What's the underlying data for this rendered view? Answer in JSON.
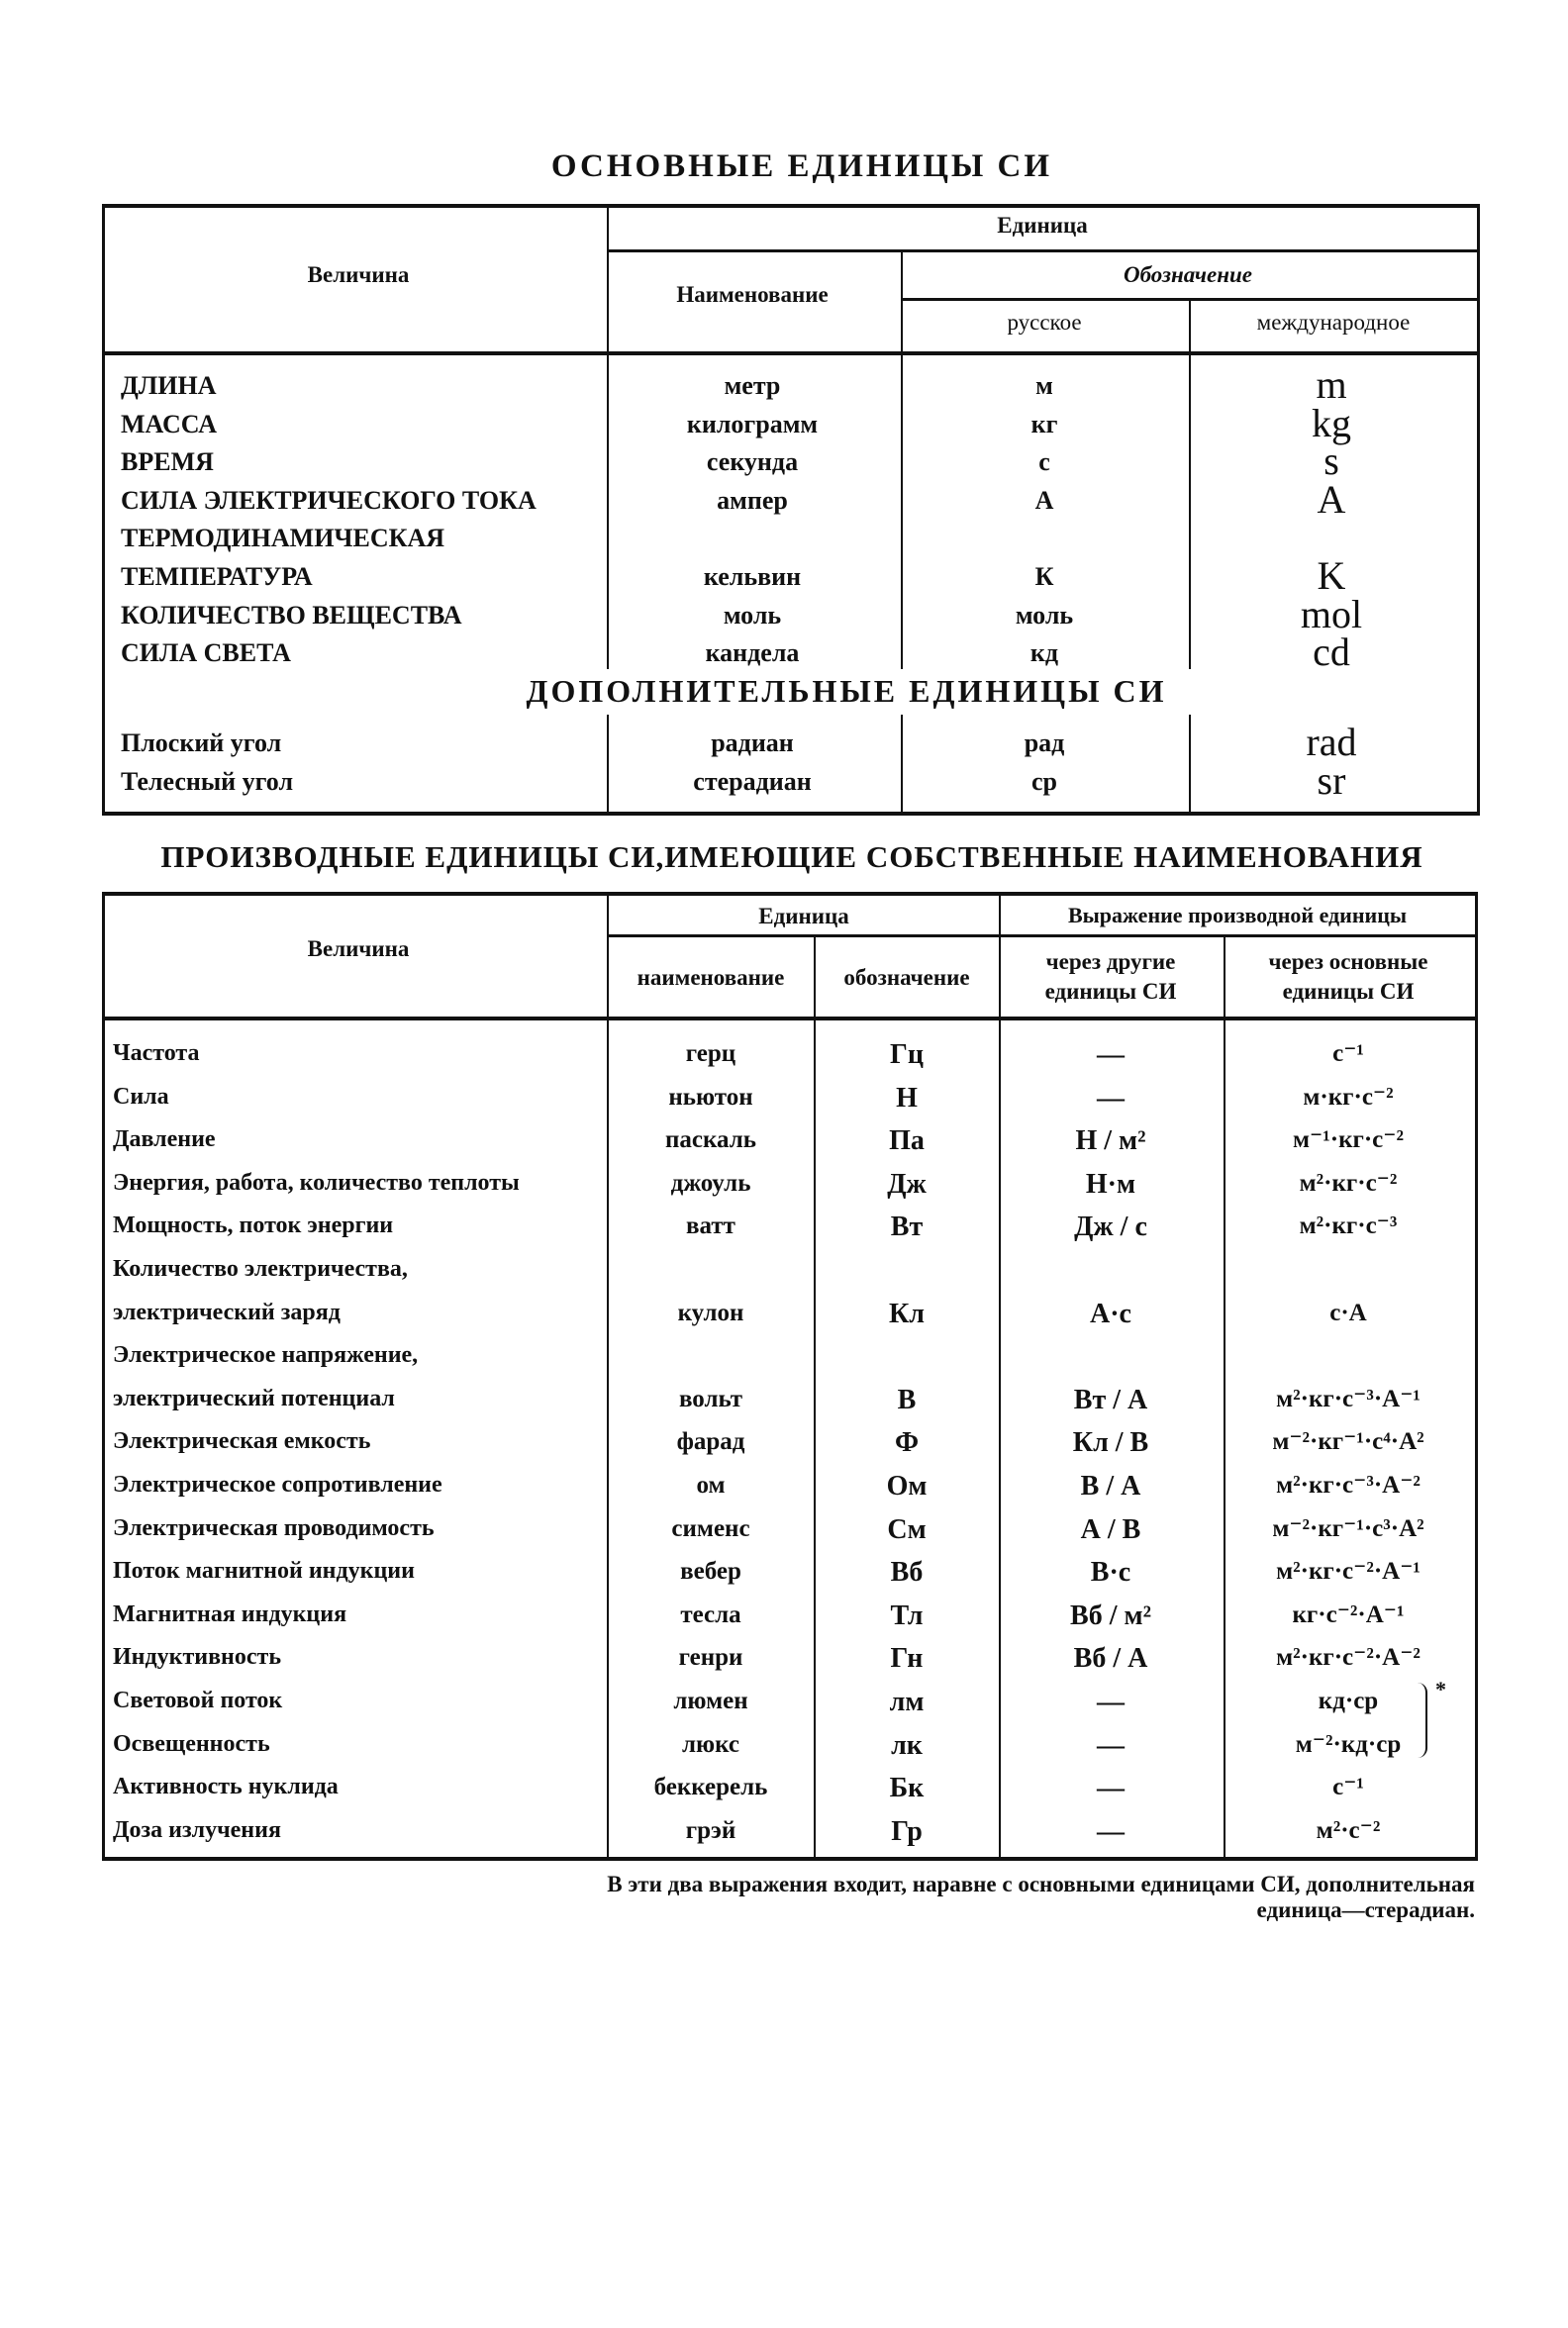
{
  "table1": {
    "title": "ОСНОВНЫЕ ЕДИНИЦЫ СИ",
    "headers": {
      "quantity": "Величина",
      "unit": "Единица",
      "name": "Наименование",
      "symbol": "Обозначение",
      "russian": "русское",
      "international": "международное"
    },
    "rows": [
      {
        "quantity": "ДЛИНА",
        "name": "метр",
        "ru": "м",
        "intl": "m"
      },
      {
        "quantity": "МАССА",
        "name": "килограмм",
        "ru": "кг",
        "intl": "kg"
      },
      {
        "quantity": "ВРЕМЯ",
        "name": "секунда",
        "ru": "с",
        "intl": "s"
      },
      {
        "quantity": "СИЛА ЭЛЕКТРИЧЕСКОГО ТОКА",
        "name": "ампер",
        "ru": "А",
        "intl": "A"
      },
      {
        "quantity": "ТЕРМОДИНАМИЧЕСКАЯ",
        "name": "",
        "ru": "",
        "intl": ""
      },
      {
        "quantity": "ТЕМПЕРАТУРА",
        "name": "кельвин",
        "ru": "К",
        "intl": "K"
      },
      {
        "quantity": "КОЛИЧЕСТВО ВЕЩЕСТВА",
        "name": "моль",
        "ru": "моль",
        "intl": "mol"
      },
      {
        "quantity": "СИЛА СВЕТА",
        "name": "кандела",
        "ru": "кд",
        "intl": "cd"
      }
    ],
    "supplementary_title": "ДОПОЛНИТЕЛЬНЫЕ ЕДИНИЦЫ СИ",
    "supplementary_rows": [
      {
        "quantity": "Плоский угол",
        "name": "радиан",
        "ru": "рад",
        "intl": "rad"
      },
      {
        "quantity": "Телесный угол",
        "name": "стерадиан",
        "ru": "ср",
        "intl": "sr"
      }
    ]
  },
  "table2": {
    "title": "ПРОИЗВОДНЫЕ ЕДИНИЦЫ СИ,ИМЕЮЩИЕ СОБСТВЕННЫЕ НАИМЕНОВАНИЯ",
    "headers": {
      "quantity": "Величина",
      "unit": "Единица",
      "name": "наименование",
      "symbol": "обозначение",
      "expression": "Выражение производной единицы",
      "via_other_1": "через другие",
      "via_other_2": "единицы СИ",
      "via_base_1": "через основные",
      "via_base_2": "единицы СИ"
    },
    "rows": [
      {
        "quantity": [
          "Частота"
        ],
        "name": "герц",
        "symbol": "Гц",
        "other": "—",
        "base": "с⁻¹"
      },
      {
        "quantity": [
          "Сила"
        ],
        "name": "ньютон",
        "symbol": "Н",
        "other": "—",
        "base": "м·кг·с⁻²"
      },
      {
        "quantity": [
          "Давление"
        ],
        "name": "паскаль",
        "symbol": "Па",
        "other": "Н / м²",
        "base": "м⁻¹·кг·с⁻²"
      },
      {
        "quantity": [
          "Энергия, работа, количество теплоты"
        ],
        "name": "джоуль",
        "symbol": "Дж",
        "other": "Н·м",
        "base": "м²·кг·с⁻²"
      },
      {
        "quantity": [
          "Мощность, поток энергии"
        ],
        "name": "ватт",
        "symbol": "Вт",
        "other": "Дж / с",
        "base": "м²·кг·с⁻³"
      },
      {
        "quantity": [
          "Количество электричества,",
          "электрический заряд"
        ],
        "name": "кулон",
        "symbol": "Кл",
        "other": "А·с",
        "base": "с·А"
      },
      {
        "quantity": [
          "Электрическое напряжение,",
          "электрический потенциал"
        ],
        "name": "вольт",
        "symbol": "В",
        "other": "Вт / А",
        "base": "м²·кг·с⁻³·А⁻¹"
      },
      {
        "quantity": [
          "Электрическая емкость"
        ],
        "name": "фарад",
        "symbol": "Ф",
        "other": "Кл / В",
        "base": "м⁻²·кг⁻¹·с⁴·А²"
      },
      {
        "quantity": [
          "Электрическое сопротивление"
        ],
        "name": "ом",
        "symbol": "Ом",
        "other": "В / А",
        "base": "м²·кг·с⁻³·А⁻²"
      },
      {
        "quantity": [
          "Электрическая проводимость"
        ],
        "name": "сименс",
        "symbol": "См",
        "other": "А / В",
        "base": "м⁻²·кг⁻¹·с³·А²"
      },
      {
        "quantity": [
          "Поток магнитной индукции"
        ],
        "name": "вебер",
        "symbol": "Вб",
        "other": "В·с",
        "base": "м²·кг·с⁻²·А⁻¹"
      },
      {
        "quantity": [
          "Магнитная индукция"
        ],
        "name": "тесла",
        "symbol": "Тл",
        "other": "Вб / м²",
        "base": "кг·с⁻²·А⁻¹"
      },
      {
        "quantity": [
          "Индуктивность"
        ],
        "name": "генри",
        "symbol": "Гн",
        "other": "Вб / А",
        "base": "м²·кг·с⁻²·А⁻²"
      },
      {
        "quantity": [
          "Световой поток"
        ],
        "name": "люмен",
        "symbol": "лм",
        "other": "—",
        "base": "кд·ср"
      },
      {
        "quantity": [
          "Освещенность"
        ],
        "name": "люкс",
        "symbol": "лк",
        "other": "—",
        "base": "м⁻²·кд·ср"
      },
      {
        "quantity": [
          "Активность нуклида"
        ],
        "name": "беккерель",
        "symbol": "Бк",
        "other": "—",
        "base": "с⁻¹"
      },
      {
        "quantity": [
          "Доза излучения"
        ],
        "name": "грэй",
        "symbol": "Гр",
        "other": "—",
        "base": "м²·с⁻²"
      }
    ],
    "footnote_mark": "*",
    "footnote_line1": "В эти два выражения входит, наравне с основными единицами СИ, дополнительная",
    "footnote_line2": "единица—стерадиан."
  }
}
